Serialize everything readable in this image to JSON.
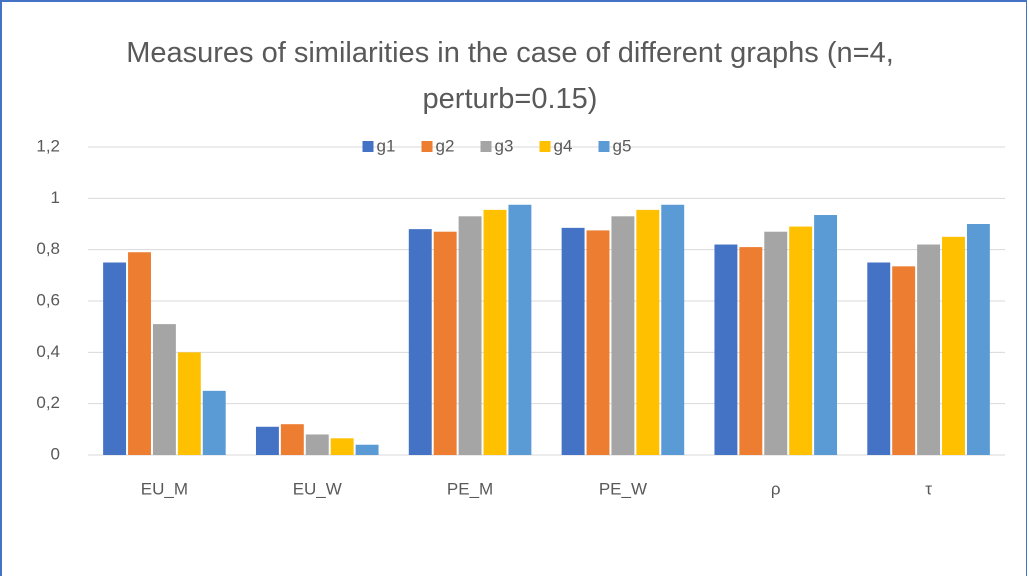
{
  "chart_data": {
    "type": "bar",
    "title": "Measures of similarities in the case of different graphs (n=4, perturb=0.15)",
    "categories": [
      "EU_M",
      "EU_W",
      "PE_M",
      "PE_W",
      "ρ",
      "τ"
    ],
    "series": [
      {
        "name": "g1",
        "color": "#4472c4",
        "values": [
          0.75,
          0.11,
          0.88,
          0.885,
          0.82,
          0.75
        ]
      },
      {
        "name": "g2",
        "color": "#ed7d31",
        "values": [
          0.79,
          0.12,
          0.87,
          0.875,
          0.81,
          0.735
        ]
      },
      {
        "name": "g3",
        "color": "#a5a5a5",
        "values": [
          0.51,
          0.08,
          0.93,
          0.93,
          0.87,
          0.82
        ]
      },
      {
        "name": "g4",
        "color": "#ffc000",
        "values": [
          0.4,
          0.065,
          0.955,
          0.955,
          0.89,
          0.85
        ]
      },
      {
        "name": "g5",
        "color": "#5b9bd5",
        "values": [
          0.25,
          0.04,
          0.975,
          0.975,
          0.935,
          0.9
        ]
      }
    ],
    "ylim": [
      0,
      1.2
    ],
    "yticks": [
      0,
      {
        "value": 0.2,
        "label": "0,2"
      },
      {
        "value": 0.4,
        "label": "0,4"
      },
      {
        "value": 0.6,
        "label": "0,6"
      },
      {
        "value": 0.8,
        "label": "0,8"
      },
      1,
      {
        "value": 1.2,
        "label": "1,2"
      }
    ],
    "grid": true,
    "legend": "top"
  }
}
